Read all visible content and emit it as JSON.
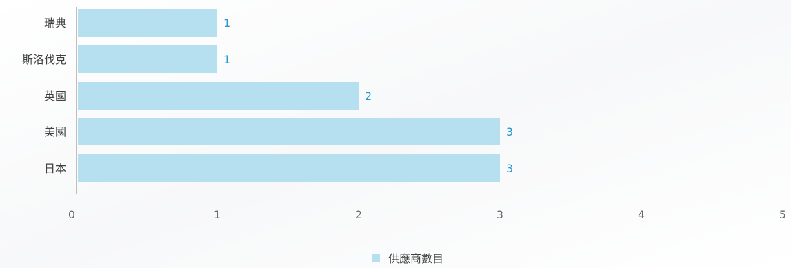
{
  "chart_data": {
    "type": "bar",
    "orientation": "horizontal",
    "categories": [
      "瑞典",
      "斯洛伐克",
      "英國",
      "美國",
      "日本"
    ],
    "series": [
      {
        "name": "供應商數目",
        "values": [
          1,
          1,
          2,
          3,
          3
        ],
        "color": "#b6dff0"
      }
    ],
    "xlim": [
      0,
      5
    ],
    "x_ticks": [
      "0",
      "1",
      "2",
      "3",
      "4",
      "5"
    ],
    "data_labels": true,
    "data_label_color": "#2b95cf",
    "grid": false,
    "legend_position": "bottom"
  }
}
